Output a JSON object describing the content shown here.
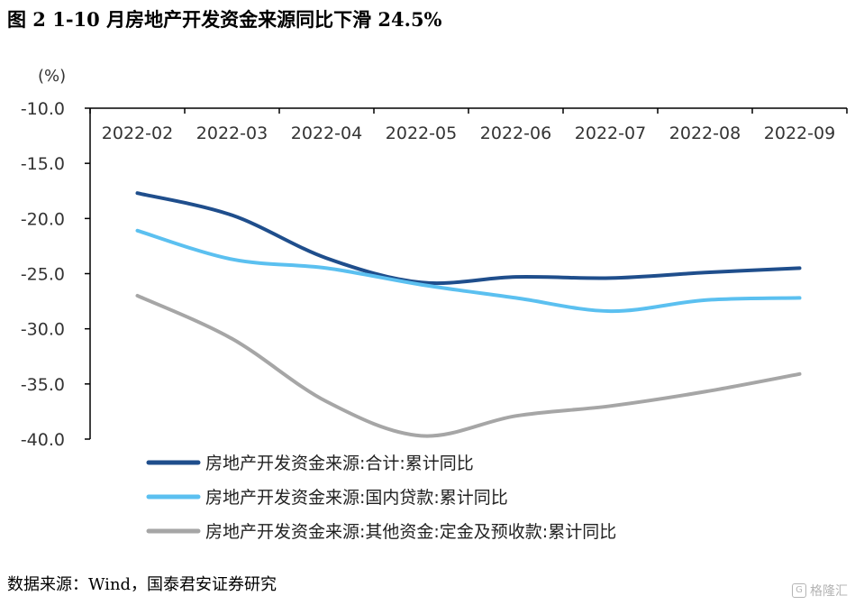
{
  "figure_title": "图 2 1-10 月房地产开发资金来源同比下滑 24.5%",
  "source": "数据来源：Wind，国泰君安证券研究",
  "watermark": "格隆汇",
  "chart_data": {
    "type": "line",
    "title": "图 2 1-10 月房地产开发资金来源同比下滑 24.5%",
    "ylabel": "(%)",
    "xlabel": "",
    "ylim": [
      -40.0,
      -10.0
    ],
    "y_ticks": [
      "-10.0",
      "-15.0",
      "-20.0",
      "-25.0",
      "-30.0",
      "-35.0",
      "-40.0"
    ],
    "y_tick_values": [
      -10,
      -15,
      -20,
      -25,
      -30,
      -35,
      -40
    ],
    "x": [
      "2022-02",
      "2022-03",
      "2022-04",
      "2022-05",
      "2022-06",
      "2022-07",
      "2022-08",
      "2022-09"
    ],
    "x_axis_position": "top",
    "grid": false,
    "legend_position": "bottom",
    "series": [
      {
        "name": "房地产开发资金来源:合计:累计同比",
        "color": "#1f4e8c",
        "values": [
          -17.7,
          -19.7,
          -23.6,
          -25.8,
          -25.3,
          -25.4,
          -24.9,
          -24.5
        ]
      },
      {
        "name": "房地产开发资金来源:国内贷款:累计同比",
        "color": "#5bc0f0",
        "values": [
          -21.1,
          -23.7,
          -24.5,
          -26.0,
          -27.2,
          -28.4,
          -27.4,
          -27.2
        ]
      },
      {
        "name": "房地产开发资金来源:其他资金:定金及预收款:累计同比",
        "color": "#a6a6a6",
        "values": [
          -27.0,
          -30.9,
          -36.6,
          -39.7,
          -37.9,
          -37.0,
          -35.7,
          -34.1
        ]
      }
    ]
  }
}
